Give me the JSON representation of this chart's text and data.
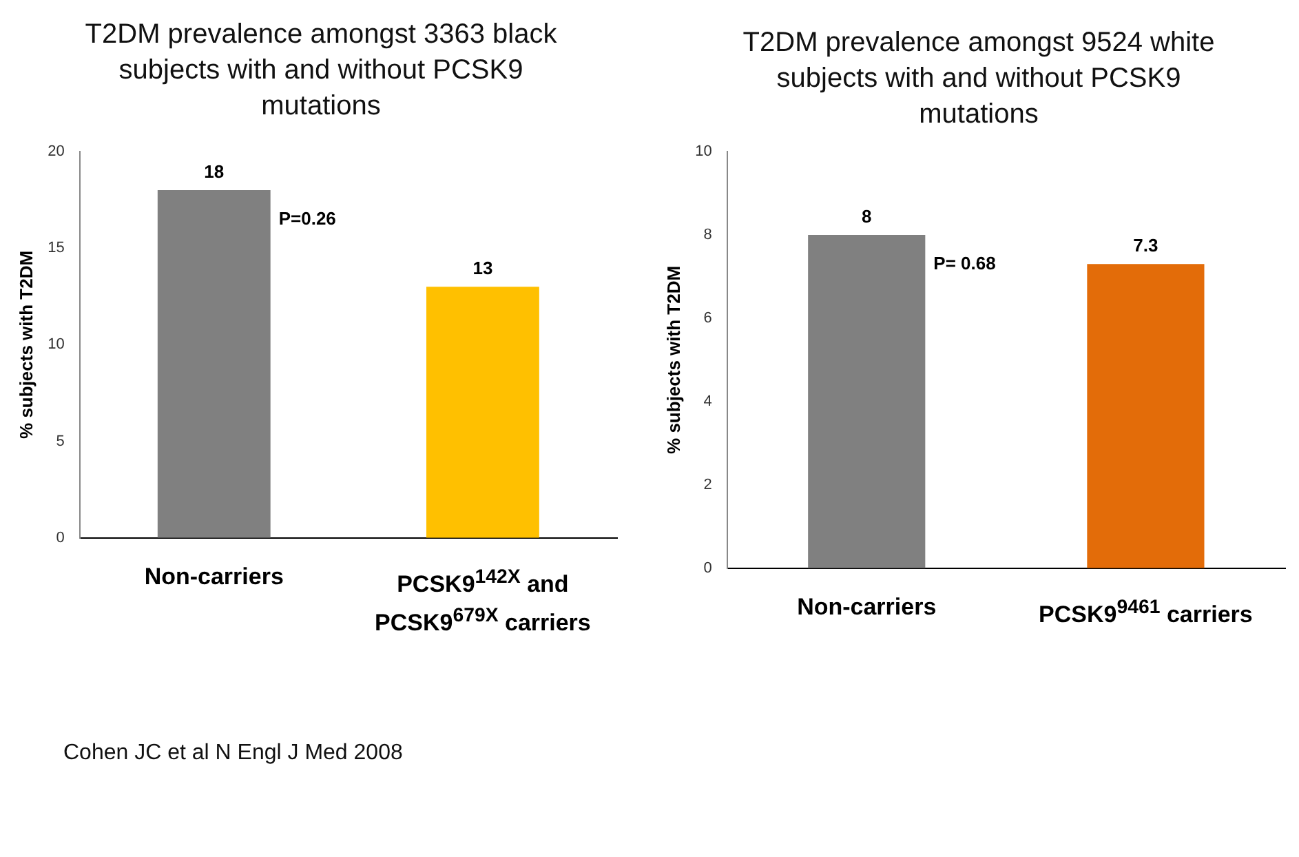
{
  "chart_data": [
    {
      "type": "bar",
      "title": "T2DM prevalence amongst 3363 black subjects with and without PCSK9 mutations",
      "ylabel": "% subjects with T2DM",
      "categories": [
        "Non-carriers",
        "PCSK9$^{142X}$ and PCSK9$^{679X}$ carriers"
      ],
      "values": [
        18,
        13
      ],
      "colors": [
        "#808080",
        "#ffc000"
      ],
      "ylim": [
        0,
        20
      ],
      "yticks": [
        0,
        5,
        10,
        15,
        20
      ],
      "grid": false,
      "legend": false,
      "data_labels": true,
      "annotations": [
        "P=0.26",
        "Cohen JC et al N Engl J Med 2008"
      ]
    },
    {
      "type": "bar",
      "title": "T2DM prevalence amongst 9524 white subjects with and without PCSK9 mutations",
      "ylabel": "% subjects with T2DM",
      "categories": [
        "Non-carriers",
        "PCSK9$^{9461}$ carriers"
      ],
      "values": [
        8,
        7.3
      ],
      "colors": [
        "#808080",
        "#e36c09"
      ],
      "ylim": [
        0,
        10
      ],
      "yticks": [
        0,
        2,
        4,
        6,
        8,
        10
      ],
      "grid": false,
      "legend": false,
      "data_labels": true,
      "annotations": [
        "P= 0.68"
      ]
    }
  ]
}
